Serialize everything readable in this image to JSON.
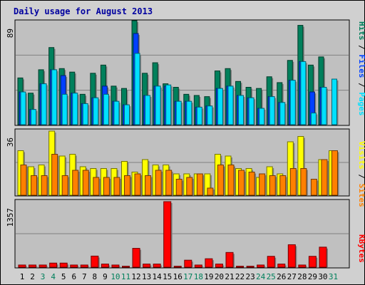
{
  "chart_data": {
    "type": "bar",
    "title": "Daily usage for August 2013",
    "colors": {
      "hits": "#00805c",
      "files": "#0040ff",
      "pages": "#00e0ff",
      "visits": "#ffff00",
      "sites": "#ff8000",
      "kbytes": "#ff0000",
      "title": "#0000a0",
      "weekend_day": "#00805c",
      "weekday_day": "#000000",
      "panel_bg": "#c0c0c0",
      "frame_bg": "#d0d0d0",
      "grid": "#808080"
    },
    "days": [
      "1",
      "2",
      "3",
      "4",
      "5",
      "6",
      "7",
      "8",
      "9",
      "10",
      "11",
      "12",
      "13",
      "14",
      "15",
      "16",
      "17",
      "18",
      "19",
      "20",
      "21",
      "22",
      "23",
      "24",
      "25",
      "26",
      "27",
      "28",
      "29",
      "30",
      "31"
    ],
    "weekend_days": [
      "3",
      "4",
      "10",
      "11",
      "17",
      "18",
      "24",
      "25",
      "31"
    ],
    "top": {
      "ymax": 89,
      "ymax_label": "89",
      "legend": [
        "Hits",
        "Files",
        "Pages"
      ],
      "legend_sep": " / ",
      "series": [
        {
          "name": "Hits",
          "values": [
            40,
            27,
            47,
            66,
            48,
            45,
            26,
            44,
            51,
            33,
            31,
            89,
            44,
            53,
            35,
            32,
            26,
            25,
            24,
            46,
            48,
            37,
            32,
            31,
            41,
            36,
            55,
            85,
            51,
            58,
            0
          ]
        },
        {
          "name": "Files",
          "values": [
            28,
            13,
            35,
            47,
            42,
            27,
            18,
            23,
            33,
            20,
            17,
            78,
            25,
            33,
            33,
            20,
            20,
            15,
            16,
            31,
            33,
            25,
            23,
            14,
            24,
            19,
            38,
            54,
            28,
            32,
            0
          ]
        },
        {
          "name": "Pages",
          "values": [
            28,
            13,
            35,
            47,
            26,
            27,
            18,
            23,
            26,
            20,
            17,
            61,
            25,
            33,
            34,
            20,
            20,
            15,
            16,
            31,
            33,
            25,
            23,
            14,
            24,
            19,
            38,
            54,
            10,
            32,
            39
          ]
        }
      ]
    },
    "middle": {
      "ymax": 36,
      "ymax_label": "36",
      "legend": [
        "Sites",
        "Visits"
      ],
      "legend_sep": " / ",
      "series": [
        {
          "name": "Visits",
          "values": [
            25,
            16,
            17,
            36,
            22,
            23,
            16,
            15,
            15,
            15,
            19,
            13,
            20,
            17,
            17,
            12,
            12,
            12,
            12,
            23,
            22,
            15,
            15,
            10,
            16,
            12,
            30,
            33,
            0,
            20,
            25
          ]
        },
        {
          "name": "Sites",
          "values": [
            17,
            11,
            11,
            23,
            11,
            14,
            14,
            10,
            10,
            10,
            11,
            12,
            11,
            14,
            14,
            9,
            10,
            12,
            4,
            17,
            17,
            14,
            13,
            12,
            11,
            11,
            15,
            15,
            9,
            20,
            25
          ]
        }
      ]
    },
    "bottom": {
      "ymax": 1357,
      "ymax_label": "1357",
      "legend": [
        "KBytes"
      ],
      "series": [
        {
          "name": "KBytes",
          "values": [
            45,
            45,
            45,
            85,
            85,
            45,
            45,
            230,
            65,
            45,
            20,
            390,
            65,
            65,
            1357,
            20,
            145,
            45,
            175,
            65,
            305,
            20,
            20,
            45,
            225,
            65,
            465,
            45,
            225,
            415,
            0
          ]
        }
      ]
    }
  }
}
